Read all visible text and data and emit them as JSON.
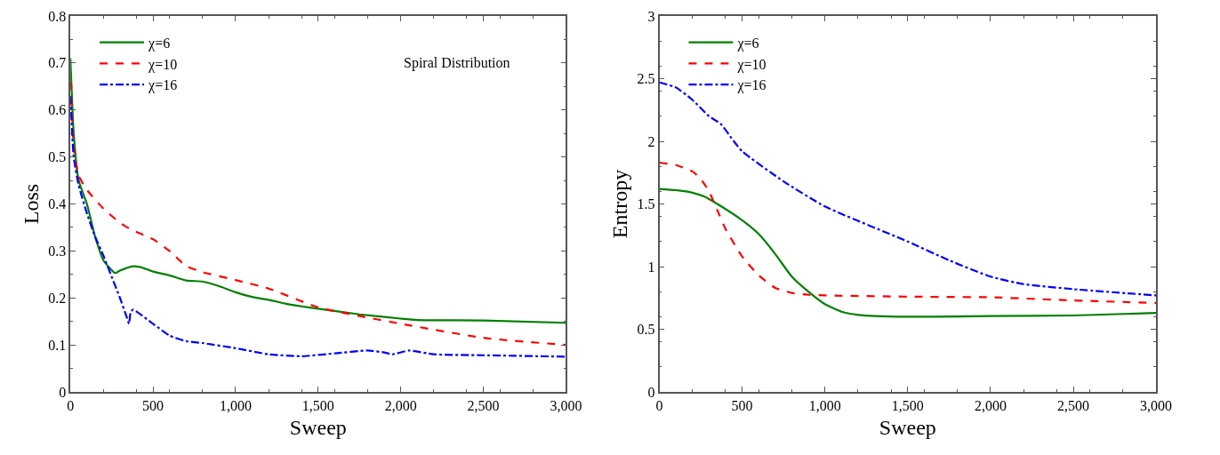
{
  "chart_data": [
    {
      "type": "line",
      "xlabel": "Sweep",
      "ylabel": "Loss",
      "annotations": [
        "Spiral Distribution"
      ],
      "xlim": [
        0,
        3000
      ],
      "ylim": [
        0,
        0.8
      ],
      "xticks": [
        0,
        500,
        {
          "value": 1000,
          "label": "1,000"
        },
        {
          "value": 1500,
          "label": "1,500"
        },
        {
          "value": 2000,
          "label": "2,000"
        },
        {
          "value": 2500,
          "label": "2,500"
        },
        {
          "value": 3000,
          "label": "3,000"
        }
      ],
      "yticks": [
        0,
        0.1,
        0.2,
        0.3,
        0.4,
        0.5,
        0.6,
        0.7,
        0.8
      ],
      "legend": "top left",
      "marker": "none",
      "series": [
        {
          "name": "χ=6",
          "color": "#008000",
          "line_style": "solid",
          "x": [
            0,
            20,
            50,
            100,
            150,
            200,
            270,
            300,
            370,
            420,
            500,
            600,
            700,
            800,
            900,
            1000,
            1100,
            1200,
            1300,
            1400,
            1500,
            1750,
            2000,
            2100,
            2500,
            3000
          ],
          "values": [
            0.71,
            0.55,
            0.45,
            0.4,
            0.33,
            0.28,
            0.253,
            0.258,
            0.267,
            0.266,
            0.256,
            0.248,
            0.237,
            0.235,
            0.225,
            0.212,
            0.202,
            0.196,
            0.188,
            0.182,
            0.177,
            0.165,
            0.156,
            0.153,
            0.152,
            0.147
          ]
        },
        {
          "name": "χ=10",
          "color": "#ff0000",
          "line_style": "dashed",
          "x": [
            0,
            20,
            50,
            100,
            200,
            300,
            370,
            500,
            600,
            700,
            800,
            1000,
            1200,
            1500,
            2000,
            2500,
            3000
          ],
          "values": [
            0.66,
            0.52,
            0.46,
            0.43,
            0.39,
            0.36,
            0.345,
            0.325,
            0.3,
            0.268,
            0.255,
            0.238,
            0.22,
            0.18,
            0.145,
            0.115,
            0.1
          ]
        },
        {
          "name": "χ=16",
          "color": "#0000ff",
          "line_style": "dashdot",
          "x": [
            0,
            20,
            50,
            100,
            150,
            200,
            250,
            300,
            340,
            355,
            365,
            380,
            500,
            600,
            700,
            800,
            1000,
            1200,
            1400,
            1600,
            1800,
            1900,
            1950,
            2050,
            2200,
            2500,
            3000
          ],
          "values": [
            0.63,
            0.5,
            0.44,
            0.38,
            0.33,
            0.29,
            0.245,
            0.2,
            0.16,
            0.145,
            0.17,
            0.175,
            0.145,
            0.12,
            0.108,
            0.104,
            0.093,
            0.08,
            0.076,
            0.082,
            0.088,
            0.084,
            0.08,
            0.088,
            0.08,
            0.078,
            0.075
          ]
        }
      ]
    },
    {
      "type": "line",
      "xlabel": "Sweep",
      "ylabel": "Entropy",
      "xlim": [
        0,
        3000
      ],
      "ylim": [
        0,
        3
      ],
      "xticks": [
        0,
        500,
        {
          "value": 1000,
          "label": "1,000"
        },
        {
          "value": 1500,
          "label": "1,500"
        },
        {
          "value": 2000,
          "label": "2,000"
        },
        {
          "value": 2500,
          "label": "2,500"
        },
        {
          "value": 3000,
          "label": "3,000"
        }
      ],
      "yticks": [
        0,
        0.5,
        1,
        1.5,
        2,
        2.5,
        3
      ],
      "legend": "top left",
      "marker": "none",
      "series": [
        {
          "name": "χ=6",
          "color": "#008000",
          "line_style": "solid",
          "x": [
            0,
            100,
            200,
            270,
            350,
            500,
            600,
            700,
            800,
            900,
            1000,
            1100,
            1200,
            1500,
            2000,
            2500,
            3000
          ],
          "values": [
            1.62,
            1.61,
            1.59,
            1.56,
            1.5,
            1.37,
            1.26,
            1.1,
            0.92,
            0.8,
            0.7,
            0.64,
            0.615,
            0.6,
            0.605,
            0.61,
            0.63
          ]
        },
        {
          "name": "χ=10",
          "color": "#ff0000",
          "line_style": "dashed",
          "x": [
            0,
            100,
            200,
            250,
            300,
            350,
            400,
            500,
            600,
            700,
            800,
            900,
            1000,
            1500,
            2000,
            2500,
            3000
          ],
          "values": [
            1.83,
            1.81,
            1.76,
            1.7,
            1.6,
            1.45,
            1.3,
            1.08,
            0.93,
            0.83,
            0.79,
            0.775,
            0.77,
            0.76,
            0.755,
            0.73,
            0.71
          ]
        },
        {
          "name": "χ=16",
          "color": "#0000ff",
          "line_style": "dashdot",
          "x": [
            0,
            100,
            200,
            300,
            370,
            450,
            500,
            750,
            1000,
            1500,
            1750,
            2000,
            2200,
            2500,
            3000
          ],
          "values": [
            2.47,
            2.43,
            2.33,
            2.2,
            2.14,
            2.0,
            1.92,
            1.68,
            1.48,
            1.2,
            1.05,
            0.92,
            0.86,
            0.82,
            0.77
          ]
        }
      ]
    }
  ]
}
